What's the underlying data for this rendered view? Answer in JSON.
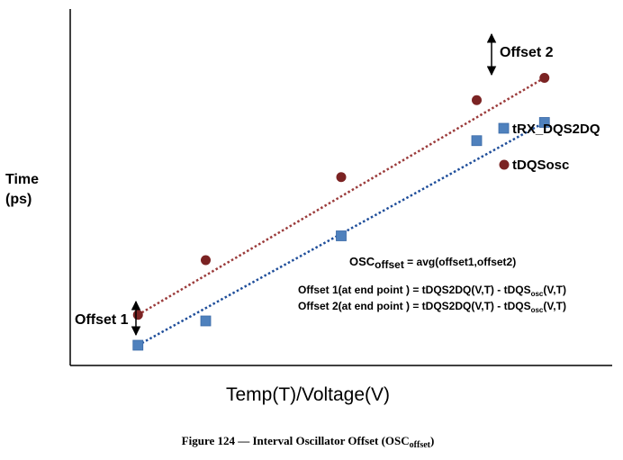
{
  "chart_data": {
    "type": "scatter",
    "xlabel": "Temp(T)/Voltage(V)",
    "ylabel_lines": [
      "Time",
      "(ps)"
    ],
    "grid": false,
    "series": [
      {
        "name": "tRX_DQS2DQ",
        "marker": "square",
        "color": "#4f81bd",
        "trend_color": "#1f4e9a",
        "x": [
          1,
          2,
          4,
          6,
          7
        ],
        "y": [
          0.5,
          1.1,
          3.2,
          5.55,
          6.0
        ],
        "trend": [
          [
            1,
            0.5
          ],
          [
            7,
            6.0
          ]
        ]
      },
      {
        "name": "tDQSosc",
        "marker": "circle",
        "color": "#7b2323",
        "trend_color": "#9b3b3b",
        "x": [
          1,
          2,
          4,
          6,
          7
        ],
        "y": [
          1.25,
          2.6,
          4.65,
          6.55,
          7.1
        ],
        "trend": [
          [
            1,
            1.25
          ],
          [
            7,
            7.1
          ]
        ]
      }
    ],
    "xlim": [
      0,
      8
    ],
    "ylim": [
      0,
      8.8
    ],
    "annotations": {
      "offset1": "Offset 1",
      "offset2": "Offset 2"
    },
    "equations": {
      "osc_main": "OSC",
      "osc_sub": "offset",
      "osc_rhs": " = avg(offset1,offset2)",
      "line1_a": "Offset 1(at end point ) = tDQS2DQ(V,T) - tDQS",
      "line1_sub": "osc",
      "line1_b": "(V,T)",
      "line2_a": "Offset 2(at end point ) = tDQS2DQ(V,T) - tDQS",
      "line2_sub": "osc",
      "line2_b": "(V,T)"
    },
    "caption": {
      "main": "Figure 124 — Interval Oscillator Offset (OSC",
      "sub": "offset",
      "end": ")"
    }
  }
}
